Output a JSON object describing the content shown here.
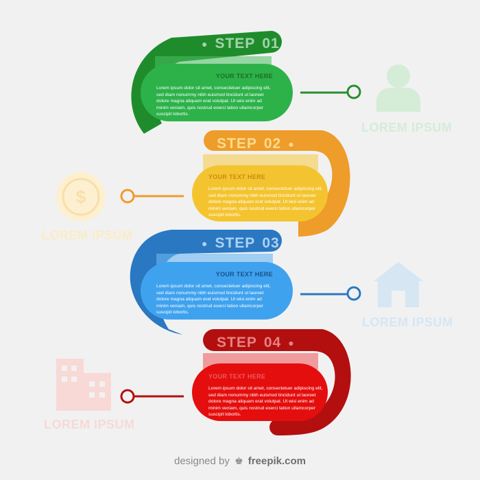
{
  "steps": [
    {
      "id": "01",
      "label": "STEP",
      "number": "01",
      "heading": "YOUR TEXT HERE",
      "body": "Lorem ipsum dolor sit amet, consectetuer adipiscing elit, sed diam nonummy nibh euismod tincidunt ut laoreet dolore magna aliquam erat volutpat. Ut wisi enim ad minim veniam, quis nostrud exerci tation ullamcorper suscipit lobortis.",
      "side_label": "LOREM IPSUM",
      "icon": "user-icon",
      "color": "#2db24a"
    },
    {
      "id": "02",
      "label": "STEP",
      "number": "02",
      "heading": "YOUR TEXT HERE",
      "body": "Lorem ipsum dolor sit amet, consectetuer adipiscing elit, sed diam nonummy nibh euismod tincidunt ut laoreet dolore magna aliquam erat volutpat. Ut wisi enim ad minim veniam, quis nostrud exerci tation ullamcorper suscipit lobortis.",
      "side_label": "LOREM IPSUM",
      "icon": "dollar-coin-icon",
      "color": "#f4c430"
    },
    {
      "id": "03",
      "label": "STEP",
      "number": "03",
      "heading": "YOUR TEXT HERE",
      "body": "Lorem ipsum dolor sit amet, consectetuer adipiscing elit, sed diam nonummy nibh euismod tincidunt ut laoreet dolore magna aliquam erat volutpat. Ut wisi enim ad minim veniam, quis nostrud exerci tation ullamcorper suscipit lobortis.",
      "side_label": "LOREM IPSUM",
      "icon": "house-icon",
      "color": "#3fa2ee"
    },
    {
      "id": "04",
      "label": "STEP",
      "number": "04",
      "heading": "YOUR TEXT HERE",
      "body": "Lorem ipsum dolor sit amet, consectetuer adipiscing elit, sed diam nonummy nibh euismod tincidunt ut laoreet dolore magna aliquam erat volutpat. Ut wisi enim ad minim veniam, quis nostrud exerci tation ullamcorper suscipit lobortis.",
      "side_label": "LOREM IPSUM",
      "icon": "buildings-icon",
      "color": "#e50e0e"
    }
  ],
  "credit": {
    "prefix": "designed by",
    "brand": "freepik.com",
    "logo_icon": "freepik-logo-icon"
  },
  "colors": {
    "green": "#2db24a",
    "green_dark": "#1f8c2c",
    "yellow": "#f4c430",
    "orange": "#ee9c2a",
    "blue": "#3fa2ee",
    "blue_dark": "#2a78c2",
    "red": "#e50e0e",
    "red_dark": "#b30f0f",
    "background": "#f1f1f2"
  }
}
